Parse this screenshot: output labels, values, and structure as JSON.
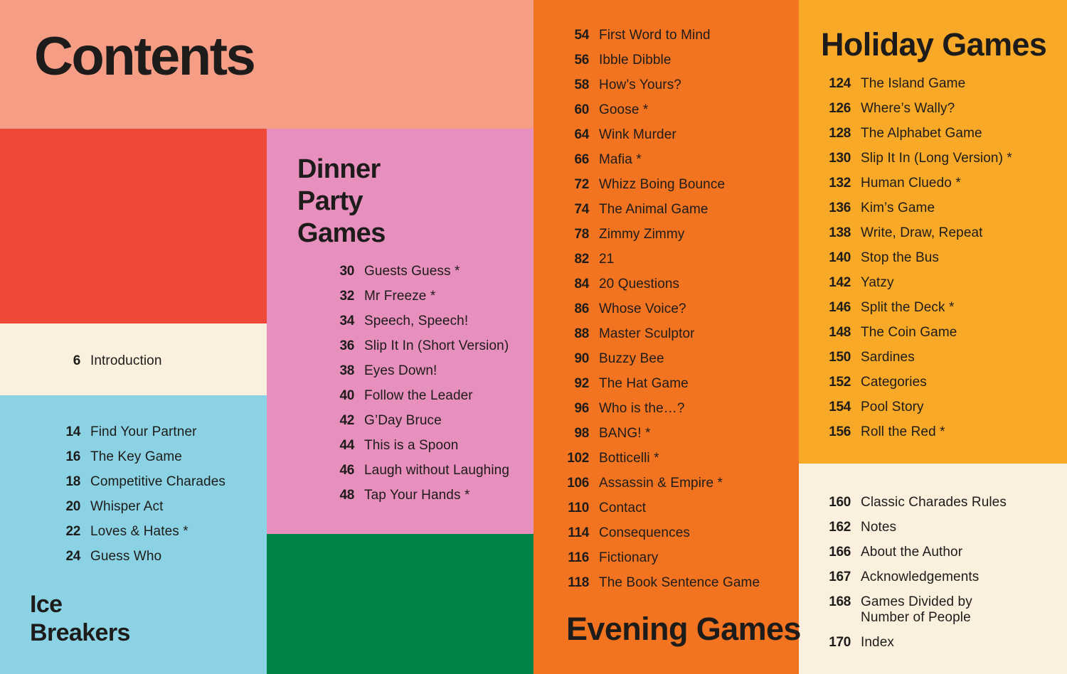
{
  "page": {
    "title": "Contents"
  },
  "colors": {
    "salmon": "#f59d85",
    "red": "#ef4937",
    "cream": "#faf0dd",
    "blue": "#8bd3e4",
    "pink": "#e78fbd",
    "green": "#008347",
    "orange": "#f37420",
    "yellow": "#f9a928",
    "ink": "#1e1c1a"
  },
  "sections": {
    "front_matter": {
      "items": [
        {
          "page": "6",
          "label": "Introduction"
        }
      ]
    },
    "ice_breakers": {
      "heading": "Ice\nBreakers",
      "items": [
        {
          "page": "14",
          "label": "Find Your Partner"
        },
        {
          "page": "16",
          "label": "The Key Game"
        },
        {
          "page": "18",
          "label": "Competitive Charades"
        },
        {
          "page": "20",
          "label": "Whisper Act"
        },
        {
          "page": "22",
          "label": "Loves & Hates *"
        },
        {
          "page": "24",
          "label": "Guess Who"
        }
      ]
    },
    "dinner_party": {
      "heading": "Dinner\nParty\nGames",
      "items": [
        {
          "page": "30",
          "label": "Guests Guess *"
        },
        {
          "page": "32",
          "label": "Mr Freeze *"
        },
        {
          "page": "34",
          "label": "Speech, Speech!"
        },
        {
          "page": "36",
          "label": "Slip It In (Short Version)"
        },
        {
          "page": "38",
          "label": "Eyes Down!"
        },
        {
          "page": "40",
          "label": "Follow the Leader"
        },
        {
          "page": "42",
          "label": "G’Day Bruce"
        },
        {
          "page": "44",
          "label": "This is a Spoon"
        },
        {
          "page": "46",
          "label": "Laugh without Laughing"
        },
        {
          "page": "48",
          "label": "Tap Your Hands *"
        }
      ]
    },
    "evening": {
      "heading": "Evening Games",
      "items": [
        {
          "page": "54",
          "label": "First Word to Mind"
        },
        {
          "page": "56",
          "label": "Ibble Dibble"
        },
        {
          "page": "58",
          "label": "How’s Yours?"
        },
        {
          "page": "60",
          "label": "Goose *"
        },
        {
          "page": "64",
          "label": "Wink Murder"
        },
        {
          "page": "66",
          "label": "Mafia *"
        },
        {
          "page": "72",
          "label": "Whizz Boing Bounce"
        },
        {
          "page": "74",
          "label": "The Animal Game"
        },
        {
          "page": "78",
          "label": "Zimmy Zimmy"
        },
        {
          "page": "82",
          "label": "21"
        },
        {
          "page": "84",
          "label": "20 Questions"
        },
        {
          "page": "86",
          "label": "Whose Voice?"
        },
        {
          "page": "88",
          "label": "Master Sculptor"
        },
        {
          "page": "90",
          "label": "Buzzy Bee"
        },
        {
          "page": "92",
          "label": "The Hat Game"
        },
        {
          "page": "96",
          "label": "Who is the…?"
        },
        {
          "page": "98",
          "label": "BANG! *"
        },
        {
          "page": "102",
          "label": "Botticelli *"
        },
        {
          "page": "106",
          "label": "Assassin & Empire *"
        },
        {
          "page": "110",
          "label": "Contact"
        },
        {
          "page": "114",
          "label": "Consequences"
        },
        {
          "page": "116",
          "label": "Fictionary"
        },
        {
          "page": "118",
          "label": "The Book Sentence Game"
        }
      ]
    },
    "holiday": {
      "heading": "Holiday Games",
      "items": [
        {
          "page": "124",
          "label": "The Island Game"
        },
        {
          "page": "126",
          "label": "Where’s Wally?"
        },
        {
          "page": "128",
          "label": "The Alphabet Game"
        },
        {
          "page": "130",
          "label": "Slip It In (Long Version) *"
        },
        {
          "page": "132",
          "label": "Human Cluedo *"
        },
        {
          "page": "136",
          "label": "Kim’s Game"
        },
        {
          "page": "138",
          "label": "Write, Draw, Repeat"
        },
        {
          "page": "140",
          "label": "Stop the Bus"
        },
        {
          "page": "142",
          "label": "Yatzy"
        },
        {
          "page": "146",
          "label": "Split the Deck *"
        },
        {
          "page": "148",
          "label": "The Coin Game"
        },
        {
          "page": "150",
          "label": "Sardines"
        },
        {
          "page": "152",
          "label": "Categories"
        },
        {
          "page": "154",
          "label": "Pool Story"
        },
        {
          "page": "156",
          "label": "Roll the Red *"
        }
      ]
    },
    "end_matter": {
      "items": [
        {
          "page": "160",
          "label": "Classic Charades Rules"
        },
        {
          "page": "162",
          "label": "Notes"
        },
        {
          "page": "166",
          "label": "About the Author"
        },
        {
          "page": "167",
          "label": "Acknowledgements"
        },
        {
          "page": "168",
          "label": "Games Divided by\nNumber of People"
        },
        {
          "page": "170",
          "label": "Index"
        }
      ]
    }
  }
}
